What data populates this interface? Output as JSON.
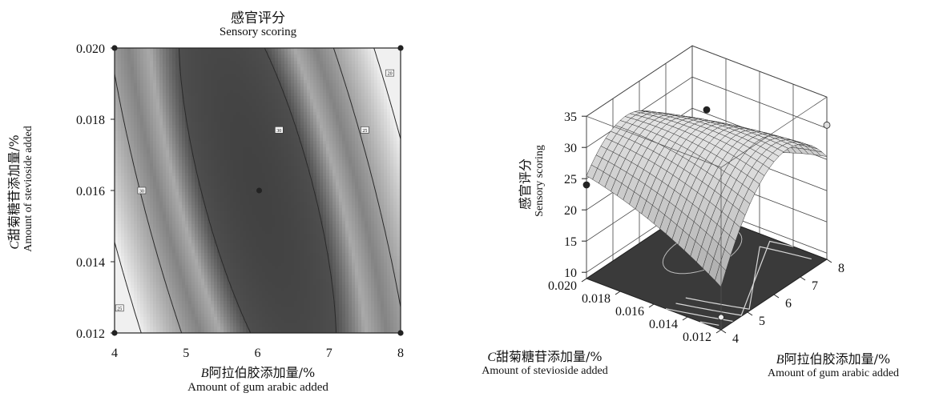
{
  "chart_data": [
    {
      "type": "contour",
      "title": "感官评分",
      "subtitle": "Sensory scoring",
      "xlabel_var": "B",
      "xlabel": "阿拉伯胶添加量/%",
      "xlabel_en": "Amount of gum arabic added",
      "ylabel_var": "C",
      "ylabel": "甜菊糖苷添加量/%",
      "ylabel_en": "Amount of stevioside added",
      "xlim": [
        4,
        8
      ],
      "ylim": [
        0.012,
        0.02
      ],
      "x_ticks": [
        "4",
        "5",
        "6",
        "7",
        "8"
      ],
      "y_ticks": [
        "0.012",
        "0.014",
        "0.016",
        "0.018",
        "0.020"
      ],
      "x_tick_values": [
        4,
        5,
        6,
        7,
        8
      ],
      "y_tick_values": [
        0.012,
        0.014,
        0.016,
        0.018,
        0.02
      ],
      "center_point": {
        "x": 6,
        "y": 0.016
      },
      "contour_labels": [
        {
          "text": "25",
          "x": 4.07,
          "y": 0.0127
        },
        {
          "text": "30",
          "x": 4.38,
          "y": 0.016
        },
        {
          "text": "30",
          "x": 6.3,
          "y": 0.0177
        },
        {
          "text": "25",
          "x": 7.5,
          "y": 0.0177
        },
        {
          "text": "20",
          "x": 7.85,
          "y": 0.0193
        }
      ]
    },
    {
      "type": "surface3d",
      "zlabel": "感官评分",
      "zlabel_en": "Sensory scoring",
      "xlabel_var": "B",
      "xlabel": "阿拉伯胶添加量/%",
      "xlabel_en": "Amount of gum arabic added",
      "ylabel_var": "C",
      "ylabel": "甜菊糖苷添加量/%",
      "ylabel_en": "Amount of stevioside added",
      "xlim": [
        4,
        8
      ],
      "ylim": [
        0.012,
        0.02
      ],
      "zlim": [
        10,
        35
      ],
      "x_ticks": [
        "4",
        "5",
        "6",
        "7",
        "8"
      ],
      "y_ticks": [
        "0.012",
        "0.014",
        "0.016",
        "0.018",
        "0.020"
      ],
      "z_ticks": [
        "10",
        "15",
        "20",
        "25",
        "30",
        "35"
      ],
      "x_tick_values": [
        4,
        5,
        6,
        7,
        8
      ],
      "y_tick_values": [
        0.012,
        0.014,
        0.016,
        0.018,
        0.02
      ],
      "z_tick_values": [
        10,
        15,
        20,
        25,
        30,
        35
      ]
    }
  ]
}
